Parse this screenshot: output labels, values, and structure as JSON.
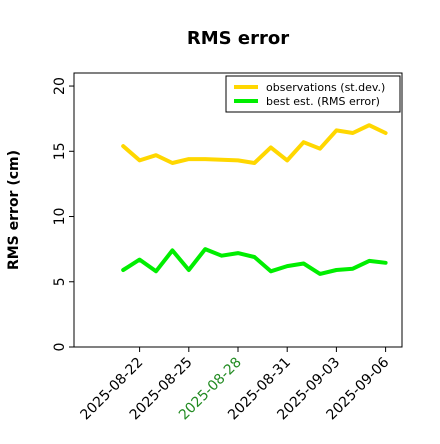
{
  "chart_data": {
    "type": "line",
    "title": "RMS error",
    "ylabel": "RMS error (cm)",
    "xlabel": "",
    "ylim": [
      0,
      21
    ],
    "yticks": [
      0,
      5,
      10,
      15,
      20
    ],
    "x_range": [
      "2025-08-18",
      "2025-09-07"
    ],
    "xticks": [
      {
        "label": "2025-08-22",
        "date": "2025-08-22",
        "color": "#000000"
      },
      {
        "label": "2025-08-25",
        "date": "2025-08-25",
        "color": "#000000"
      },
      {
        "label": "2025-08-28",
        "date": "2025-08-28",
        "color": "#228b22"
      },
      {
        "label": "2025-08-31",
        "date": "2025-08-31",
        "color": "#000000"
      },
      {
        "label": "2025-09-03",
        "date": "2025-09-03",
        "color": "#000000"
      },
      {
        "label": "2025-09-06",
        "date": "2025-09-06",
        "color": "#000000"
      }
    ],
    "grid": false,
    "legend_position": "top-right",
    "series": [
      {
        "name": "observations (st.dev.)",
        "color": "#ffd700",
        "x": [
          "2025-08-21",
          "2025-08-22",
          "2025-08-23",
          "2025-08-24",
          "2025-08-25",
          "2025-08-26",
          "2025-08-27",
          "2025-08-28",
          "2025-08-29",
          "2025-08-30",
          "2025-08-31",
          "2025-09-01",
          "2025-09-02",
          "2025-09-03",
          "2025-09-04",
          "2025-09-05",
          "2025-09-06"
        ],
        "values": [
          15.4,
          14.3,
          14.7,
          14.1,
          14.4,
          14.4,
          14.35,
          14.3,
          14.1,
          15.3,
          14.3,
          15.7,
          15.2,
          16.6,
          16.4,
          17.0,
          16.4
        ]
      },
      {
        "name": "best est. (RMS error)",
        "color": "#00ee00",
        "x": [
          "2025-08-21",
          "2025-08-22",
          "2025-08-23",
          "2025-08-24",
          "2025-08-25",
          "2025-08-26",
          "2025-08-27",
          "2025-08-28",
          "2025-08-29",
          "2025-08-30",
          "2025-08-31",
          "2025-09-01",
          "2025-09-02",
          "2025-09-03",
          "2025-09-04",
          "2025-09-05",
          "2025-09-06"
        ],
        "values": [
          5.9,
          6.7,
          5.8,
          7.4,
          5.9,
          7.5,
          7.0,
          7.2,
          6.9,
          5.8,
          6.2,
          6.4,
          5.6,
          5.9,
          6.0,
          6.6,
          6.45
        ]
      }
    ]
  }
}
